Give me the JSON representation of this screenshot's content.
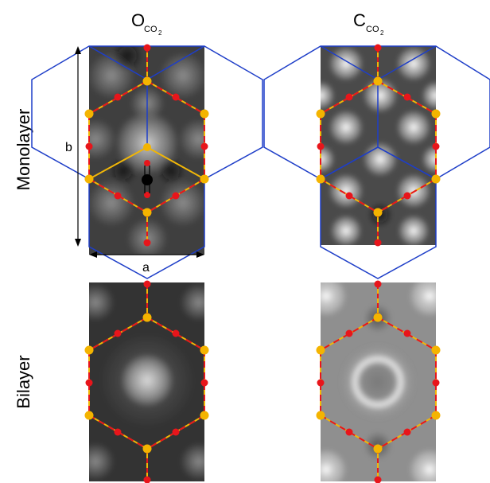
{
  "columns": [
    {
      "symbol": "O",
      "subscript_main": "CO",
      "subscript_digit": "2"
    },
    {
      "symbol": "C",
      "subscript_main": "CO",
      "subscript_digit": "2"
    }
  ],
  "rows": [
    "Monolayer",
    "Bilayer"
  ],
  "lattice_vectors": {
    "a": "a",
    "b": "b"
  },
  "colors": {
    "boron_bond": "#f2b705",
    "atom_gold": "#f4b400",
    "atom_red": "#e8151b",
    "cell_outline": "#1e3ec8",
    "molecule": "#000000"
  }
}
